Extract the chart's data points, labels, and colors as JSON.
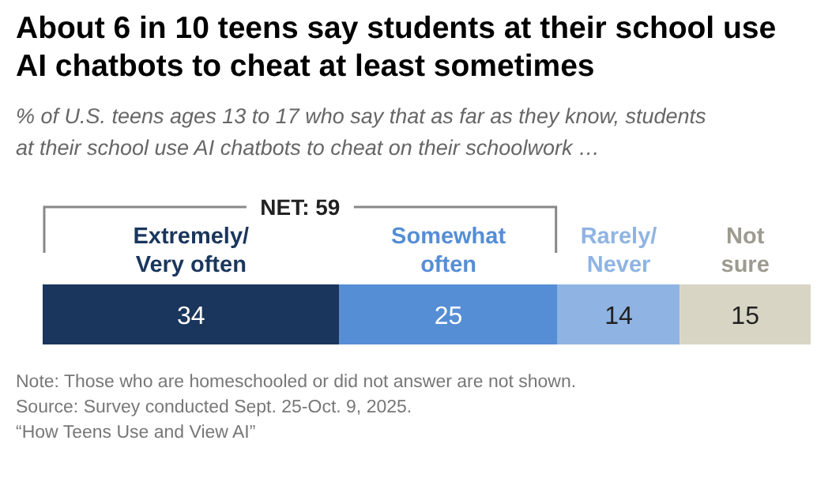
{
  "chart_data": {
    "type": "bar",
    "orientation": "horizontal",
    "stacked": true,
    "data_labels": true,
    "title": "About 6 in 10 teens say students at their school use AI chatbots to cheat at least sometimes",
    "subtitle": "% of U.S. teens ages 13 to 17 who say that as far as they know, students at their school use AI chatbots to cheat on their schoolwork …",
    "categories": [
      null
    ],
    "series": [
      {
        "name": "Extremely/\nVery often",
        "color": "#1a365d",
        "values": [
          34
        ]
      },
      {
        "name": "Somewhat\noften",
        "color": "#558ed5",
        "values": [
          25
        ]
      },
      {
        "name": "Rarely/\nNever",
        "color": "#8fb4e3",
        "values": [
          14
        ]
      },
      {
        "name": "Not\nsure",
        "color": "#d9d5c5",
        "values": [
          15
        ]
      }
    ],
    "annotations": [
      "NET: 59",
      "Note: Those who are homeschooled or did not answer are not shown.",
      "Source: Survey conducted Sept. 25-Oct. 9, 2025.",
      "“How Teens Use and View AI”"
    ]
  }
}
